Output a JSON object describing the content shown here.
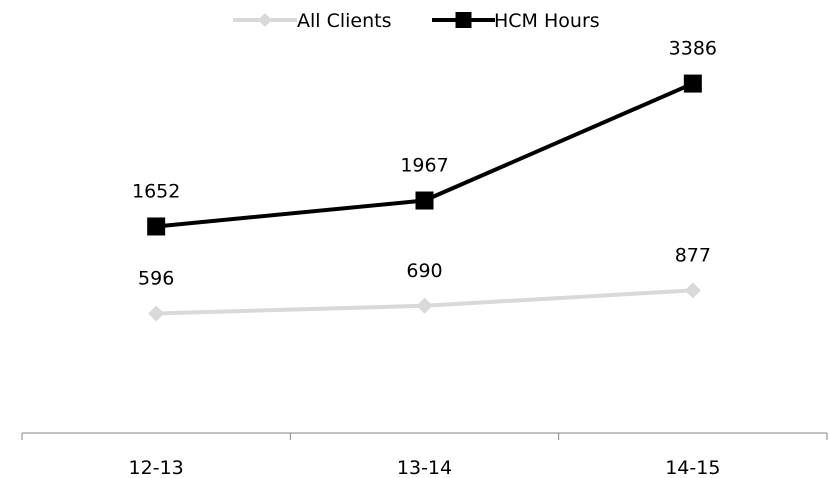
{
  "chart_data": {
    "type": "line",
    "categories": [
      "12-13",
      "13-14",
      "14-15"
    ],
    "series": [
      {
        "name": "All Clients",
        "values": [
          596,
          690,
          877
        ],
        "color": "#d9d9d9",
        "marker": "diamond"
      },
      {
        "name": "HCM Hours",
        "values": [
          1652,
          1967,
          3386
        ],
        "color": "#000000",
        "marker": "square"
      }
    ],
    "title": "",
    "xlabel": "",
    "ylabel": "",
    "ylim": [
      -1400,
      4400
    ],
    "grid": false,
    "legend_position": "top-center",
    "data_labels": true
  }
}
